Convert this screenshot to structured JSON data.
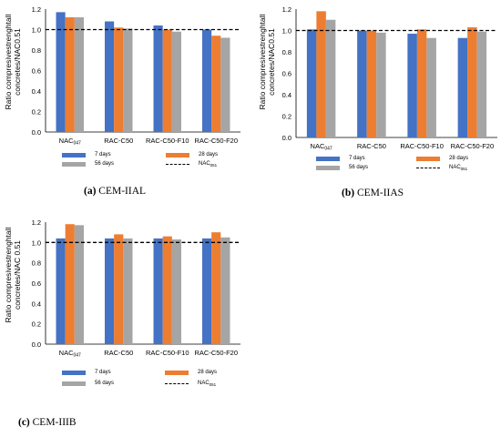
{
  "colors": {
    "d7": "#4472c4",
    "d28": "#ed7d31",
    "d56": "#a5a5a5",
    "ref": "#000000"
  },
  "panels": [
    {
      "caption_letter": "(a)",
      "caption_text": " CEM-IIAL",
      "ylabel_line1": "Ratio compresivestrenghtall",
      "ylabel_line2": "concretes/NAC0.51",
      "legend": {
        "d7": "7 days",
        "d28": "28 days",
        "d56": "56 days",
        "ref_base": "NAC",
        "ref_sub": "051"
      },
      "chart_data": {
        "type": "bar",
        "categories": [
          "NAC047",
          "RAC-C50",
          "RAC-C50-F10",
          "RAC-C50-F20"
        ],
        "category_labels": [
          {
            "base": "NAC",
            "sub": "047"
          },
          {
            "base": "RAC-C50",
            "sub": ""
          },
          {
            "base": "RAC-C50-F10",
            "sub": ""
          },
          {
            "base": "RAC-C50-F20",
            "sub": ""
          }
        ],
        "series": [
          {
            "name": "7 days",
            "values": [
              1.17,
              1.08,
              1.04,
              1.0
            ]
          },
          {
            "name": "28 days",
            "values": [
              1.12,
              1.02,
              1.0,
              0.94
            ]
          },
          {
            "name": "56 days",
            "values": [
              1.12,
              1.01,
              0.98,
              0.92
            ]
          }
        ],
        "reference": {
          "name": "NAC051",
          "value": 1.0
        },
        "ylim": [
          0,
          1.2
        ],
        "yticks": [
          "0.0",
          "0.2",
          "0.4",
          "0.6",
          "0.8",
          "1.0",
          "1.2"
        ]
      }
    },
    {
      "caption_letter": "(b)",
      "caption_text": " CEM-IIAS",
      "ylabel_line1": "Ratio compresivestrenghtall",
      "ylabel_line2": "concretes/NAC0.51",
      "legend": {
        "d7": "7 days",
        "d28": "28 days",
        "d56": "56 days",
        "ref_base": "NAC",
        "ref_sub": "051"
      },
      "chart_data": {
        "type": "bar",
        "categories": [
          "NAC047",
          "RAC-C50",
          "RAC-C50-F10",
          "RAC-C50-F20"
        ],
        "category_labels": [
          {
            "base": "NAC",
            "sub": "047"
          },
          {
            "base": "RAC-C50",
            "sub": ""
          },
          {
            "base": "RAC-C50-F10",
            "sub": ""
          },
          {
            "base": "RAC-C50-F20",
            "sub": ""
          }
        ],
        "series": [
          {
            "name": "7 days",
            "values": [
              1.01,
              1.0,
              0.97,
              0.93
            ]
          },
          {
            "name": "28 days",
            "values": [
              1.18,
              1.0,
              1.01,
              1.03
            ]
          },
          {
            "name": "56 days",
            "values": [
              1.1,
              0.98,
              0.93,
              0.99
            ]
          }
        ],
        "reference": {
          "name": "NAC051",
          "value": 1.0
        },
        "ylim": [
          0,
          1.2
        ],
        "yticks": [
          "0.0",
          "0.2",
          "0.4",
          "0.6",
          "0.8",
          "1.0",
          "1.2"
        ]
      }
    },
    {
      "caption_letter": "(c)",
      "caption_text": " CEM-IIIB",
      "ylabel_line1": "Ratio compresivestrenghtall",
      "ylabel_line2": "concretes/NAC 0.51",
      "legend": {
        "d7": "7 days",
        "d28": "28 days",
        "d56": "56 days",
        "ref_base": "NAC",
        "ref_sub": "051"
      },
      "chart_data": {
        "type": "bar",
        "categories": [
          "NAC047",
          "RAC-C50",
          "RAC-C50-F10",
          "RAC-C50-F20"
        ],
        "category_labels": [
          {
            "base": "NAC",
            "sub": "047"
          },
          {
            "base": "RAC-C50",
            "sub": ""
          },
          {
            "base": "RAC-C50-F10",
            "sub": ""
          },
          {
            "base": "RAC-C50-F20",
            "sub": ""
          }
        ],
        "series": [
          {
            "name": "7 days",
            "values": [
              1.04,
              1.04,
              1.04,
              1.04
            ]
          },
          {
            "name": "28 days",
            "values": [
              1.18,
              1.08,
              1.06,
              1.1
            ]
          },
          {
            "name": "56 days",
            "values": [
              1.17,
              1.04,
              1.03,
              1.05
            ]
          }
        ],
        "reference": {
          "name": "NAC051",
          "value": 1.0
        },
        "ylim": [
          0,
          1.2
        ],
        "yticks": [
          "0.0",
          "0.2",
          "0.4",
          "0.6",
          "0.8",
          "1.0",
          "1.2"
        ]
      }
    }
  ]
}
